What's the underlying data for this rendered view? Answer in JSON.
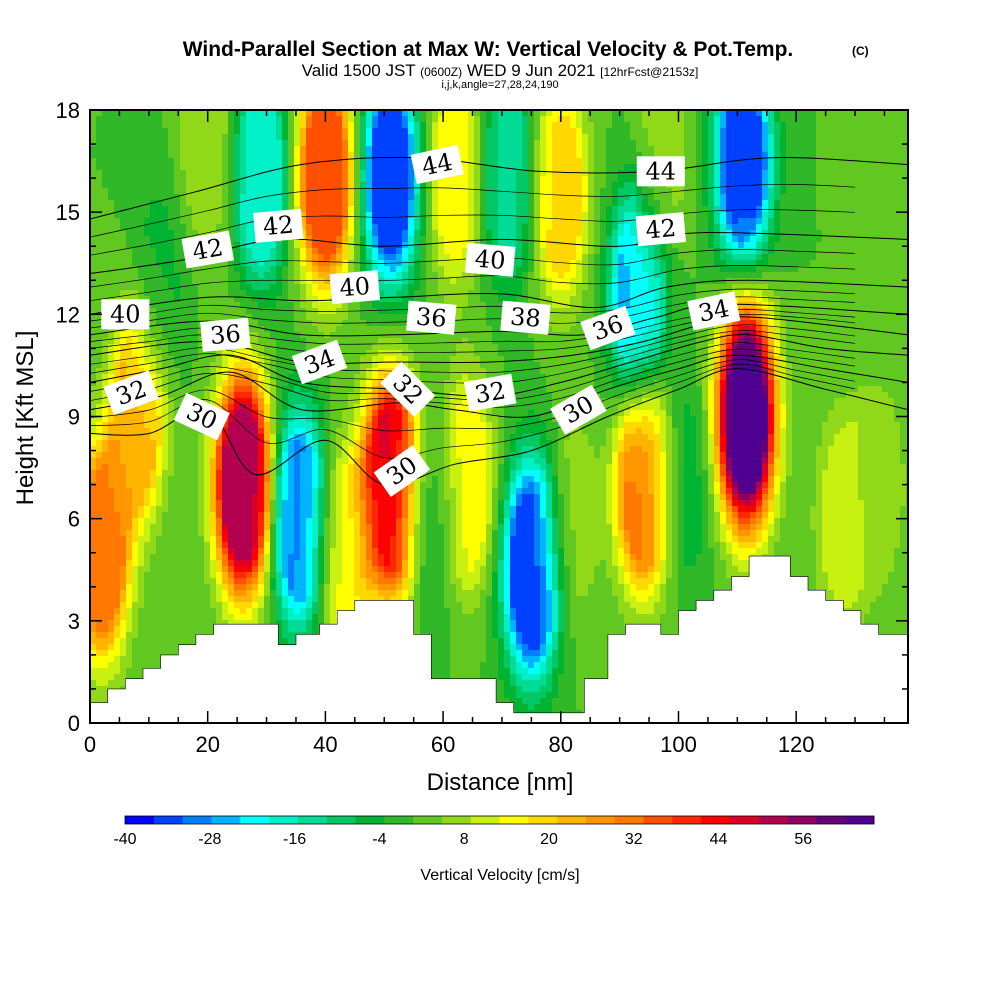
{
  "chart_data": {
    "type": "heatmap",
    "title": "Wind-Parallel Section at Max W: Vertical Velocity & Pot.Temp.",
    "title_mark": "(C)",
    "subtitle": {
      "part1": "Valid 1500 JST",
      "part2": "(0600Z)",
      "part3": "WED 9 Jun 2021",
      "part4": "[12hrFcst@2153z]"
    },
    "subtitle2": "i,j,k,angle=27,28,24,190",
    "xlabel": "Distance [nm]",
    "ylabel": "Height [Kft MSL]",
    "xlim": [
      0,
      139
    ],
    "ylim": [
      0,
      18
    ],
    "x_ticks": [
      "0",
      "20",
      "40",
      "60",
      "80",
      "100",
      "120"
    ],
    "y_ticks": [
      "0",
      "3",
      "6",
      "9",
      "12",
      "15",
      "18"
    ],
    "x_tick_values": [
      0,
      20,
      40,
      60,
      80,
      100,
      120
    ],
    "y_tick_values": [
      0,
      3,
      6,
      9,
      12,
      15,
      18
    ],
    "colorbar": {
      "label": "Vertical Velocity [cm/s]",
      "tick_labels": [
        "-40",
        "-28",
        "-16",
        "-4",
        "8",
        "20",
        "32",
        "44",
        "56"
      ],
      "tick_values": [
        -40,
        -28,
        -16,
        -4,
        8,
        20,
        32,
        44,
        56
      ],
      "min": -40,
      "max": 62,
      "step": 4,
      "colors": [
        "#0000ff",
        "#0040ff",
        "#0080ff",
        "#00b4ff",
        "#00ffff",
        "#00f0c8",
        "#00dc96",
        "#00c864",
        "#00b432",
        "#30b828",
        "#60c820",
        "#90d818",
        "#c8f010",
        "#ffff00",
        "#ffd800",
        "#ffb400",
        "#ff9600",
        "#ff7800",
        "#ff5000",
        "#ff2800",
        "#ff0000",
        "#dc0028",
        "#b40050",
        "#8c0064",
        "#640078",
        "#500090"
      ]
    },
    "vertical_velocity_cells": [
      {
        "x": 2,
        "y": 5.0,
        "w": 30
      },
      {
        "x": 8,
        "y": 9.0,
        "w": 22
      },
      {
        "x": 12,
        "y": 13.0,
        "w": -5
      },
      {
        "x": 26,
        "y": 7.0,
        "w": 52
      },
      {
        "x": 35.5,
        "y": 6.0,
        "w": -30
      },
      {
        "x": 43,
        "y": 5.0,
        "w": 14
      },
      {
        "x": 51,
        "y": 7.0,
        "w": 46
      },
      {
        "x": 58,
        "y": 6.0,
        "w": -6
      },
      {
        "x": 64,
        "y": 7.0,
        "w": 16
      },
      {
        "x": 75,
        "y": 4.5,
        "w": -36
      },
      {
        "x": 82,
        "y": 6.0,
        "w": 6
      },
      {
        "x": 94,
        "y": 7.0,
        "w": 30
      },
      {
        "x": 101,
        "y": 7.0,
        "w": -6
      },
      {
        "x": 111.5,
        "y": 9.0,
        "w": 62
      },
      {
        "x": 128,
        "y": 6.0,
        "w": 10
      },
      {
        "x": 134,
        "y": 7.0,
        "w": 6
      },
      {
        "x": 29,
        "y": 16.0,
        "w": -20
      },
      {
        "x": 40,
        "y": 16.0,
        "w": 36
      },
      {
        "x": 51,
        "y": 16.0,
        "w": -34
      },
      {
        "x": 62,
        "y": 16.0,
        "w": 14
      },
      {
        "x": 71,
        "y": 16.0,
        "w": -14
      },
      {
        "x": 80,
        "y": 15.5,
        "w": 18
      },
      {
        "x": 93,
        "y": 12.5,
        "w": -26
      },
      {
        "x": 111,
        "y": 16.5,
        "w": -34
      },
      {
        "x": 97,
        "y": 16.5,
        "w": 6
      },
      {
        "x": 20,
        "y": 17.0,
        "w": 8
      }
    ],
    "terrain": [
      [
        0,
        0.6
      ],
      [
        3,
        0.6
      ],
      [
        3,
        1.0
      ],
      [
        6,
        1.0
      ],
      [
        6,
        1.3
      ],
      [
        9,
        1.3
      ],
      [
        9,
        1.6
      ],
      [
        12,
        1.6
      ],
      [
        12,
        2.0
      ],
      [
        15,
        2.0
      ],
      [
        15,
        2.3
      ],
      [
        18,
        2.3
      ],
      [
        18,
        2.6
      ],
      [
        21,
        2.6
      ],
      [
        21,
        2.9
      ],
      [
        24,
        2.9
      ],
      [
        32,
        2.9
      ],
      [
        32,
        2.3
      ],
      [
        35,
        2.3
      ],
      [
        35,
        2.6
      ],
      [
        39,
        2.6
      ],
      [
        39,
        2.9
      ],
      [
        42,
        2.9
      ],
      [
        42,
        3.3
      ],
      [
        45,
        3.3
      ],
      [
        45,
        3.6
      ],
      [
        55,
        3.6
      ],
      [
        55,
        2.6
      ],
      [
        58,
        2.6
      ],
      [
        58,
        1.3
      ],
      [
        69,
        1.3
      ],
      [
        69,
        0.6
      ],
      [
        72,
        0.6
      ],
      [
        72,
        0.3
      ],
      [
        84,
        0.3
      ],
      [
        84,
        1.3
      ],
      [
        88,
        1.3
      ],
      [
        88,
        2.6
      ],
      [
        91,
        2.6
      ],
      [
        91,
        2.9
      ],
      [
        97,
        2.9
      ],
      [
        97,
        2.6
      ],
      [
        100,
        2.6
      ],
      [
        100,
        3.3
      ],
      [
        103,
        3.3
      ],
      [
        103,
        3.6
      ],
      [
        106,
        3.6
      ],
      [
        106,
        3.9
      ],
      [
        109,
        3.9
      ],
      [
        109,
        4.3
      ],
      [
        112,
        4.3
      ],
      [
        112,
        4.9
      ],
      [
        119,
        4.9
      ],
      [
        119,
        4.3
      ],
      [
        122,
        4.3
      ],
      [
        122,
        3.9
      ],
      [
        125,
        3.9
      ],
      [
        125,
        3.6
      ],
      [
        128,
        3.6
      ],
      [
        128,
        3.3
      ],
      [
        131,
        3.3
      ],
      [
        131,
        2.9
      ],
      [
        134,
        2.9
      ],
      [
        134,
        2.6
      ],
      [
        139,
        2.6
      ]
    ],
    "theta_isentropes": [
      {
        "value": 30,
        "points": [
          [
            0,
            8.5
          ],
          [
            10,
            8.5
          ],
          [
            20,
            9.2
          ],
          [
            28,
            7.3
          ],
          [
            40,
            8.3
          ],
          [
            50,
            7.0
          ],
          [
            62,
            7.6
          ],
          [
            75,
            8.0
          ],
          [
            88,
            9.0
          ],
          [
            100,
            9.8
          ],
          [
            110,
            10.4
          ],
          [
            125,
            9.8
          ],
          [
            139,
            9.2
          ]
        ]
      },
      {
        "value": 32,
        "points": [
          [
            0,
            9.2
          ],
          [
            12,
            9.6
          ],
          [
            24,
            10.3
          ],
          [
            36,
            9.2
          ],
          [
            52,
            9.4
          ],
          [
            62,
            9.2
          ],
          [
            75,
            9.0
          ],
          [
            88,
            9.8
          ],
          [
            100,
            10.4
          ],
          [
            110,
            10.8
          ],
          [
            125,
            10.4
          ],
          [
            139,
            10.0
          ]
        ]
      },
      {
        "value": 34,
        "points": [
          [
            0,
            10.0
          ],
          [
            12,
            10.4
          ],
          [
            24,
            10.8
          ],
          [
            36,
            10.0
          ],
          [
            52,
            9.8
          ],
          [
            68,
            9.6
          ],
          [
            80,
            10.0
          ],
          [
            92,
            10.6
          ],
          [
            104,
            11.2
          ],
          [
            112,
            11.4
          ],
          [
            125,
            11.0
          ],
          [
            139,
            10.8
          ]
        ]
      },
      {
        "value": 36,
        "points": [
          [
            0,
            10.8
          ],
          [
            20,
            11.2
          ],
          [
            36,
            10.6
          ],
          [
            52,
            10.6
          ],
          [
            68,
            10.6
          ],
          [
            82,
            10.8
          ],
          [
            94,
            11.2
          ],
          [
            106,
            11.8
          ],
          [
            114,
            11.9
          ],
          [
            139,
            11.4
          ]
        ]
      },
      {
        "value": 38,
        "points": [
          [
            0,
            11.4
          ],
          [
            20,
            11.8
          ],
          [
            36,
            11.4
          ],
          [
            52,
            11.4
          ],
          [
            70,
            11.5
          ],
          [
            84,
            11.4
          ],
          [
            96,
            11.9
          ],
          [
            108,
            12.3
          ],
          [
            139,
            12.0
          ]
        ]
      },
      {
        "value": 40,
        "points": [
          [
            0,
            12.0
          ],
          [
            20,
            12.5
          ],
          [
            36,
            12.4
          ],
          [
            52,
            12.5
          ],
          [
            70,
            12.6
          ],
          [
            86,
            12.2
          ],
          [
            98,
            12.8
          ],
          [
            112,
            13.0
          ],
          [
            139,
            12.8
          ]
        ]
      },
      {
        "value": 42,
        "points": [
          [
            0,
            13.2
          ],
          [
            16,
            13.6
          ],
          [
            32,
            14.2
          ],
          [
            50,
            14.0
          ],
          [
            70,
            14.2
          ],
          [
            90,
            14.0
          ],
          [
            104,
            14.4
          ],
          [
            139,
            14.2
          ]
        ]
      },
      {
        "value": 44,
        "points": [
          [
            0,
            14.8
          ],
          [
            18,
            15.6
          ],
          [
            36,
            16.4
          ],
          [
            56,
            16.6
          ],
          [
            76,
            16.2
          ],
          [
            96,
            16.2
          ],
          [
            116,
            16.6
          ],
          [
            139,
            16.4
          ]
        ]
      }
    ],
    "theta_labels": [
      {
        "text": "30",
        "x": 19,
        "y": 9.0,
        "angle": 25
      },
      {
        "text": "30",
        "x": 53,
        "y": 7.4,
        "angle": -35
      },
      {
        "text": "30",
        "x": 83,
        "y": 9.2,
        "angle": -30
      },
      {
        "text": "32",
        "x": 7,
        "y": 9.7,
        "angle": -20
      },
      {
        "text": "32",
        "x": 54,
        "y": 9.8,
        "angle": 45
      },
      {
        "text": "32",
        "x": 68,
        "y": 9.7,
        "angle": -10
      },
      {
        "text": "34",
        "x": 39,
        "y": 10.6,
        "angle": -20
      },
      {
        "text": "34",
        "x": 106,
        "y": 12.1,
        "angle": -12
      },
      {
        "text": "36",
        "x": 23,
        "y": 11.4,
        "angle": -5
      },
      {
        "text": "36",
        "x": 58,
        "y": 11.9,
        "angle": 5
      },
      {
        "text": "36",
        "x": 88,
        "y": 11.6,
        "angle": -20
      },
      {
        "text": "38",
        "x": 74,
        "y": 11.9,
        "angle": 5
      },
      {
        "text": "40",
        "x": 6,
        "y": 12.0,
        "angle": 0
      },
      {
        "text": "40",
        "x": 45,
        "y": 12.8,
        "angle": -5
      },
      {
        "text": "40",
        "x": 68,
        "y": 13.6,
        "angle": 5
      },
      {
        "text": "42",
        "x": 20,
        "y": 13.9,
        "angle": -10
      },
      {
        "text": "42",
        "x": 32,
        "y": 14.6,
        "angle": -5
      },
      {
        "text": "42",
        "x": 97,
        "y": 14.5,
        "angle": -5
      },
      {
        "text": "44",
        "x": 59,
        "y": 16.4,
        "angle": -12
      },
      {
        "text": "44",
        "x": 97,
        "y": 16.2,
        "angle": 0
      }
    ]
  }
}
